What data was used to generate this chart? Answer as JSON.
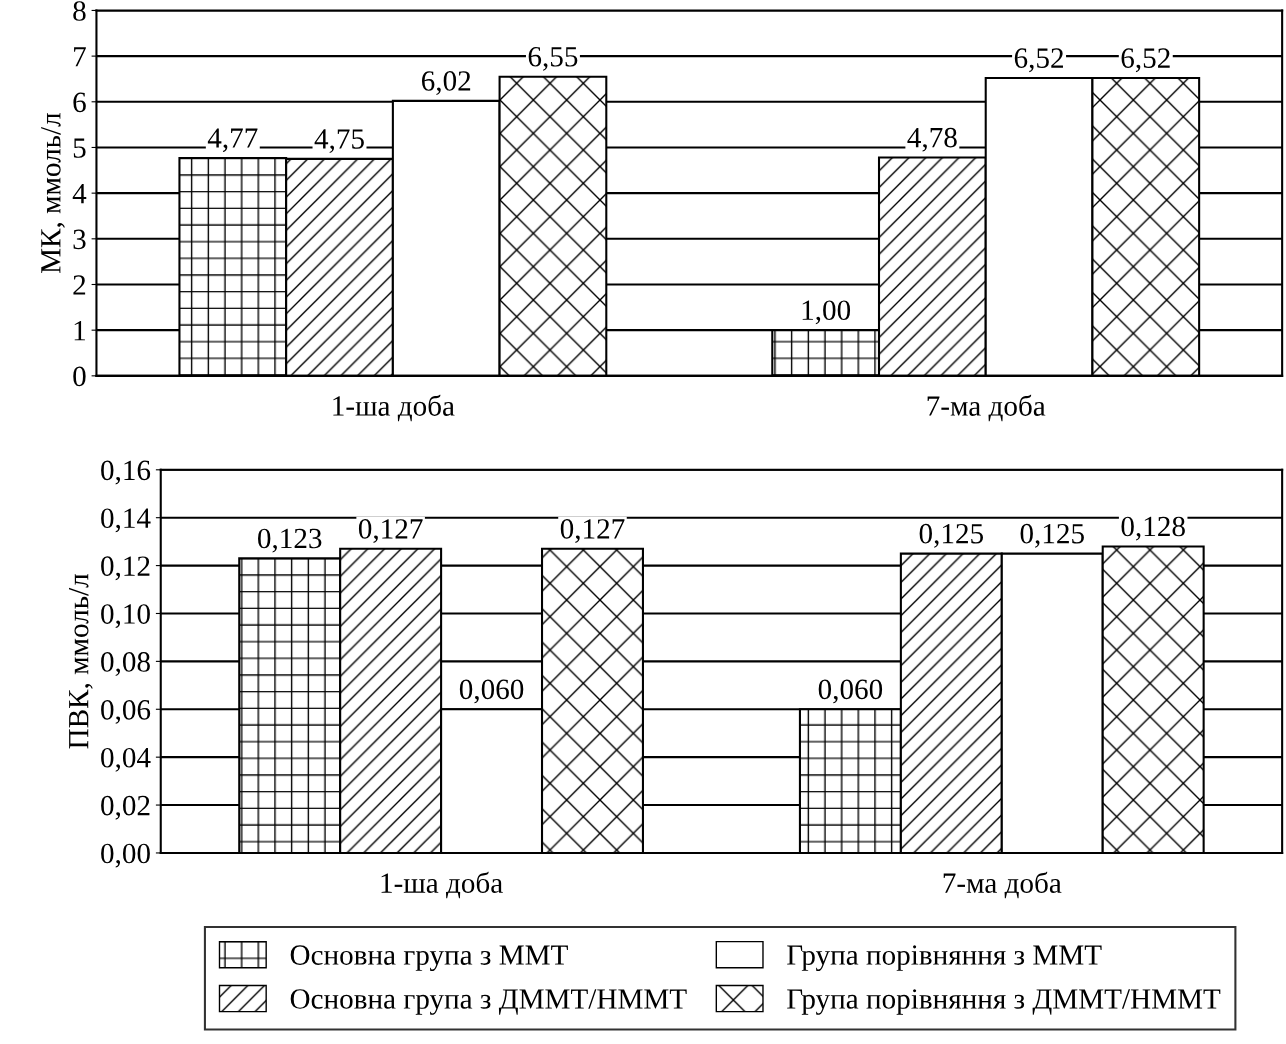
{
  "chart_data": [
    {
      "type": "bar",
      "ylabel": "МК, ммоль/л",
      "categories": [
        "1-ша доба",
        "7-ма доба"
      ],
      "series": [
        {
          "color": "#000000",
          "values": [
            4.77,
            1.0
          ],
          "value_labels": [
            "4,77",
            "1,00"
          ]
        },
        {
          "color": "#000000",
          "values": [
            4.75,
            4.78
          ],
          "value_labels": [
            "4,75",
            "4,78"
          ]
        },
        {
          "color": "#ffffff",
          "values": [
            6.02,
            6.52
          ],
          "value_labels": [
            "6,02",
            "6,52"
          ]
        },
        {
          "color": "#000000",
          "values": [
            6.55,
            6.52
          ],
          "value_labels": [
            "6,55",
            "6,52"
          ]
        }
      ],
      "ylim": [
        0,
        8
      ],
      "yticks": [
        0,
        1,
        2,
        3,
        4,
        5,
        6,
        7,
        8
      ],
      "grid": "y",
      "legend": false
    },
    {
      "type": "bar",
      "ylabel": "ПВК, ммоль/л",
      "categories": [
        "1-ша доба",
        "7-ма доба"
      ],
      "series": [
        {
          "name": "Основна група з ММТ",
          "color": "#000000",
          "values": [
            0.123,
            0.06
          ],
          "value_labels": [
            "0,123",
            "0,060"
          ]
        },
        {
          "name": "Основна група з ДММТ/НММТ",
          "color": "#000000",
          "values": [
            0.127,
            0.125
          ],
          "value_labels": [
            "0,127",
            "0,125"
          ]
        },
        {
          "name": "Група порівняння з ММТ",
          "color": "#ffffff",
          "values": [
            0.06,
            0.125
          ],
          "value_labels": [
            "0,060",
            "0,125"
          ]
        },
        {
          "name": "Група порівняння з ДММТ/НММТ",
          "color": "#000000",
          "values": [
            0.127,
            0.128
          ],
          "value_labels": [
            "0,127",
            "0,128"
          ]
        }
      ],
      "ylim": [
        0,
        0.16
      ],
      "yticks": [
        {
          "value": 0,
          "label": "0,00"
        },
        {
          "value": 0.02,
          "label": "0,02"
        },
        {
          "value": 0.04,
          "label": "0,04"
        },
        {
          "value": 0.06,
          "label": "0,06"
        },
        {
          "value": 0.08,
          "label": "0,08"
        },
        {
          "value": 0.1,
          "label": "0,10"
        },
        {
          "value": 0.12,
          "label": "0,12"
        },
        {
          "value": 0.14,
          "label": "0,14"
        },
        {
          "value": 0.16,
          "label": "0,16"
        }
      ],
      "grid": "y",
      "legend": "bottom"
    }
  ]
}
